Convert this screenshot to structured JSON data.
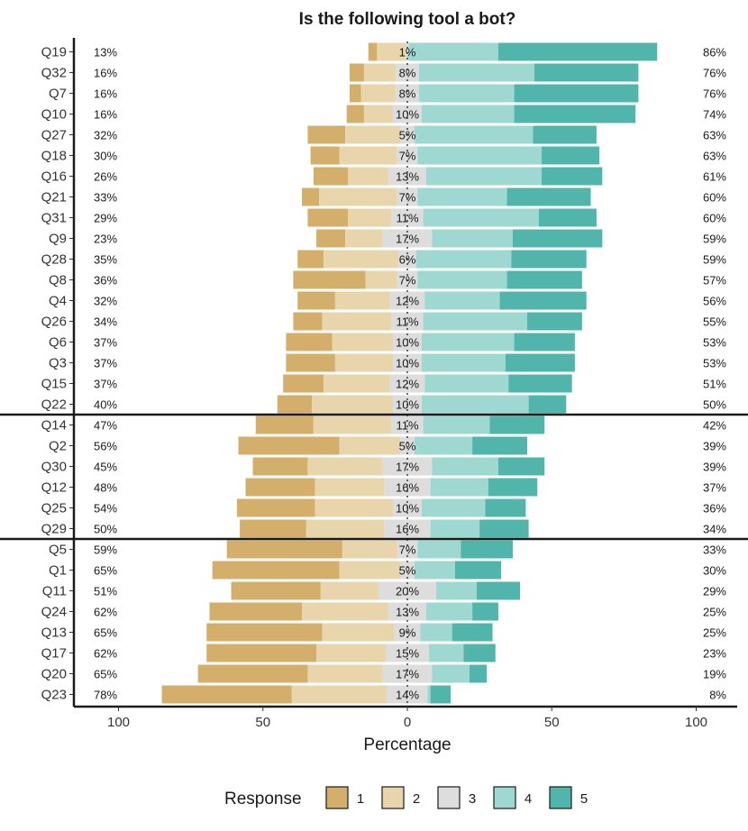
{
  "chart_data": {
    "type": "bar",
    "subtype": "diverging-stacked-likert",
    "title": "Is the following tool a bot?",
    "xlabel": "Percentage",
    "xlim": [
      -100,
      100
    ],
    "xticks": [
      -100,
      -50,
      0,
      50,
      100
    ],
    "xtick_labels": [
      "100",
      "50",
      "0",
      "50",
      "100"
    ],
    "grid": false,
    "legend": {
      "title": "Response",
      "position": "bottom",
      "labels": [
        "1",
        "2",
        "3",
        "4",
        "5"
      ]
    },
    "colors": [
      "#D4AF6B",
      "#E9D5AB",
      "#DDDDDD",
      "#9ED8D0",
      "#52B5AC"
    ],
    "categories": [
      "Q19",
      "Q32",
      "Q7",
      "Q10",
      "Q27",
      "Q18",
      "Q16",
      "Q21",
      "Q31",
      "Q9",
      "Q28",
      "Q8",
      "Q4",
      "Q26",
      "Q6",
      "Q3",
      "Q15",
      "Q22",
      "Q14",
      "Q2",
      "Q30",
      "Q12",
      "Q25",
      "Q29",
      "Q5",
      "Q1",
      "Q11",
      "Q24",
      "Q13",
      "Q17",
      "Q20",
      "Q23"
    ],
    "groups_end_after": [
      "Q22",
      "Q29"
    ],
    "series": [
      {
        "name": "1",
        "values": [
          3,
          5,
          4,
          6,
          13,
          10,
          12,
          6,
          14,
          10,
          9,
          25,
          13,
          10,
          16,
          17,
          14,
          12,
          20,
          35,
          19,
          24,
          27,
          23,
          40,
          44,
          31,
          32,
          40,
          38,
          38,
          45
        ]
      },
      {
        "name": "2",
        "values": [
          10,
          11,
          12,
          10,
          19,
          20,
          14,
          27,
          15,
          13,
          26,
          11,
          19,
          24,
          21,
          20,
          23,
          28,
          27,
          21,
          26,
          24,
          27,
          27,
          19,
          21,
          20,
          30,
          25,
          24,
          26,
          33
        ]
      },
      {
        "name": "3",
        "values": [
          1,
          8,
          8,
          10,
          5,
          7,
          13,
          7,
          11,
          17,
          6,
          7,
          12,
          11,
          10,
          10,
          12,
          10,
          11,
          5,
          17,
          16,
          10,
          16,
          7,
          5,
          20,
          13,
          9,
          15,
          17,
          14
        ]
      },
      {
        "name": "4",
        "values": [
          31,
          40,
          33,
          32,
          41,
          43,
          40,
          31,
          40,
          28,
          33,
          31,
          26,
          36,
          32,
          29,
          29,
          37,
          23,
          20,
          23,
          20,
          22,
          17,
          15,
          14,
          14,
          16,
          11,
          12,
          13,
          1
        ]
      },
      {
        "name": "5",
        "values": [
          55,
          36,
          43,
          42,
          22,
          20,
          21,
          29,
          20,
          31,
          26,
          26,
          30,
          19,
          21,
          24,
          22,
          13,
          19,
          19,
          16,
          17,
          14,
          17,
          18,
          16,
          15,
          9,
          14,
          11,
          6,
          7
        ]
      }
    ],
    "left_labels": [
      "13%",
      "16%",
      "16%",
      "16%",
      "32%",
      "30%",
      "26%",
      "33%",
      "29%",
      "23%",
      "35%",
      "36%",
      "32%",
      "34%",
      "37%",
      "37%",
      "37%",
      "40%",
      "47%",
      "56%",
      "45%",
      "48%",
      "54%",
      "50%",
      "59%",
      "65%",
      "51%",
      "62%",
      "65%",
      "62%",
      "65%",
      "78%"
    ],
    "center_labels": [
      "1%",
      "8%",
      "8%",
      "10%",
      "5%",
      "7%",
      "13%",
      "7%",
      "11%",
      "17%",
      "6%",
      "7%",
      "12%",
      "11%",
      "10%",
      "10%",
      "12%",
      "10%",
      "11%",
      "5%",
      "17%",
      "16%",
      "10%",
      "16%",
      "7%",
      "5%",
      "20%",
      "13%",
      "9%",
      "15%",
      "17%",
      "14%"
    ],
    "right_labels": [
      "86%",
      "76%",
      "76%",
      "74%",
      "63%",
      "63%",
      "61%",
      "60%",
      "60%",
      "59%",
      "59%",
      "57%",
      "56%",
      "55%",
      "53%",
      "53%",
      "51%",
      "50%",
      "42%",
      "39%",
      "39%",
      "37%",
      "36%",
      "34%",
      "33%",
      "30%",
      "29%",
      "25%",
      "25%",
      "23%",
      "19%",
      "8%"
    ]
  }
}
